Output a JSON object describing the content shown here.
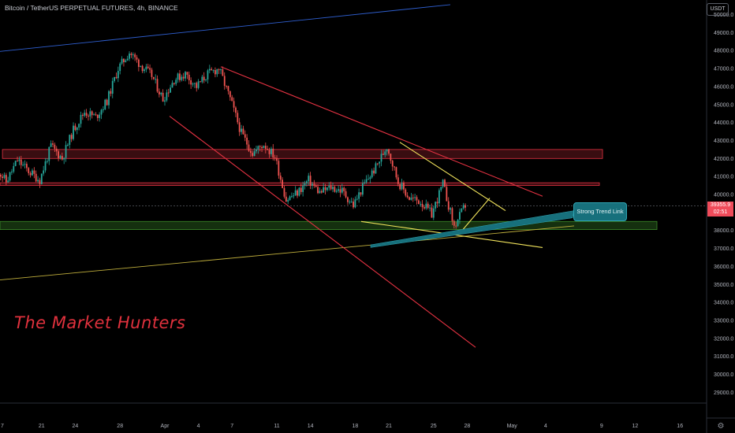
{
  "header": {
    "title": "Bitcoin / TetherUS PERPETUAL FUTURES, 4h, BINANCE",
    "currency": "USDT"
  },
  "watermark": "The Market Hunters",
  "callout": "Strong Trend Link",
  "last_price": {
    "value": "39355.9",
    "countdown": "02:51"
  },
  "icons": {
    "settings": "gear-icon"
  },
  "colors": {
    "up": "#26a69a",
    "down": "#ef5350",
    "resistance": "#e53242",
    "support": "#3c8a2a",
    "triangle": "#f2e45c",
    "trend_blue": "#2f5fd0",
    "trend_olive": "#bfae3c",
    "trend_link": "#17707c"
  },
  "chart_data": {
    "type": "candlestick",
    "title": "Bitcoin / TetherUS PERPETUAL FUTURES, 4h, BINANCE",
    "y_axis": {
      "ticks": [
        29000,
        30000,
        31000,
        32000,
        33000,
        34000,
        35000,
        36000,
        37000,
        38000,
        39000,
        40000,
        41000,
        42000,
        43000,
        44000,
        45000,
        46000,
        47000,
        48000,
        49000,
        50000
      ],
      "range": [
        28500,
        50300
      ],
      "unit": "USDT"
    },
    "x_axis": {
      "tick_labels": [
        "7",
        "21",
        "24",
        "28",
        "Apr",
        "4",
        "7",
        "11",
        "14",
        "18",
        "21",
        "25",
        "28",
        "May",
        "4",
        "9",
        "12",
        "16"
      ]
    },
    "price_path": [
      [
        "Mar 17",
        41600
      ],
      [
        "Mar 18",
        40700
      ],
      [
        "Mar 19",
        41900
      ],
      [
        "Mar 20",
        41300
      ],
      [
        "Mar 21",
        40800
      ],
      [
        "Mar 22",
        42700
      ],
      [
        "Mar 23",
        42000
      ],
      [
        "Mar 24",
        43600
      ],
      [
        "Mar 25",
        44600
      ],
      [
        "Mar 26",
        44300
      ],
      [
        "Mar 27",
        45200
      ],
      [
        "Mar 28",
        47000
      ],
      [
        "Mar 29",
        47900
      ],
      [
        "Mar 30",
        47200
      ],
      [
        "Mar 31",
        46600
      ],
      [
        "Apr 1",
        45300
      ],
      [
        "Apr 2",
        46400
      ],
      [
        "Apr 3",
        46700
      ],
      [
        "Apr 4",
        46000
      ],
      [
        "Apr 5",
        46700
      ],
      [
        "Apr 6",
        47000
      ],
      [
        "Apr 7",
        45300
      ],
      [
        "Apr 8",
        43400
      ],
      [
        "Apr 9",
        42300
      ],
      [
        "Apr 10",
        42800
      ],
      [
        "Apr 11",
        42100
      ],
      [
        "Apr 12",
        39700
      ],
      [
        "Apr 13",
        40100
      ],
      [
        "Apr 14",
        40800
      ],
      [
        "Apr 15",
        40100
      ],
      [
        "Apr 16",
        40400
      ],
      [
        "Apr 17",
        40200
      ],
      [
        "Apr 18",
        39400
      ],
      [
        "Apr 19",
        40600
      ],
      [
        "Apr 20",
        41500
      ],
      [
        "Apr 21",
        42700
      ],
      [
        "Apr 22",
        40700
      ],
      [
        "Apr 23",
        39800
      ],
      [
        "Apr 24",
        39600
      ],
      [
        "Apr 25",
        38900
      ],
      [
        "Apr 26",
        40600
      ],
      [
        "Apr 27",
        38200
      ],
      [
        "Apr 28",
        39400
      ]
    ],
    "last_price": 39355.9,
    "drawings": {
      "resistance_zones": [
        [
          42000,
          42500
        ],
        [
          40500,
          40650
        ]
      ],
      "support_zones": [
        [
          38050,
          38500
        ]
      ],
      "descending_channel": "red",
      "triangle": "yellow",
      "trendlines": [
        "blue",
        "olive",
        "teal"
      ]
    },
    "annotations": [
      "Strong Trend Link"
    ],
    "grid": false
  }
}
